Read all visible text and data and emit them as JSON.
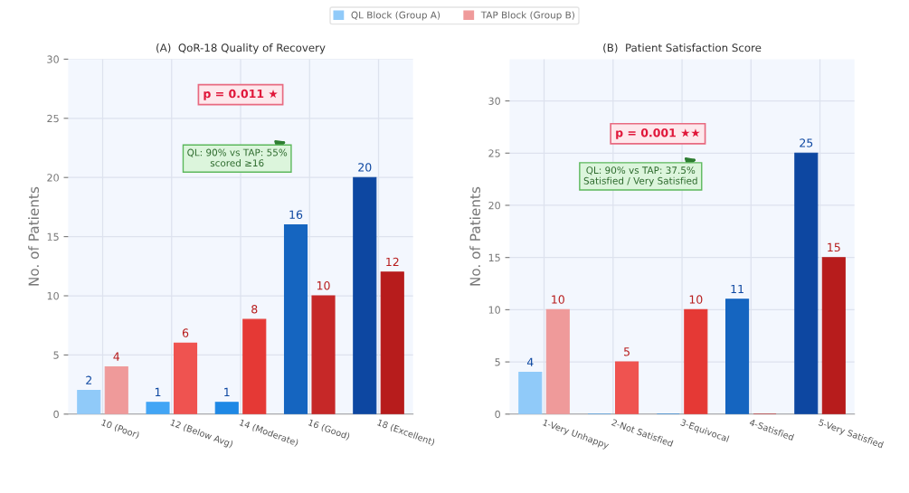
{
  "chart_data": [
    {
      "type": "bar",
      "title": "(A)  QoR-18 Quality of Recovery",
      "ylabel": "No. of Patients",
      "categories": [
        "10 (Poor)",
        "12 (Below Avg)",
        "14 (Moderate)",
        "16 (Good)",
        "18 (Excellent)"
      ],
      "series": [
        {
          "name": "QL Block (Group A)",
          "color": "#90caf9",
          "colors": [
            "#90caf9",
            "#42a5f5",
            "#1e88e5",
            "#1565c0",
            "#0d47a1"
          ],
          "values": [
            2,
            1,
            1,
            16,
            20
          ]
        },
        {
          "name": "TAP Block (Group B)",
          "color": "#ef9a9a",
          "colors": [
            "#ef9a9a",
            "#ef5350",
            "#e53935",
            "#c62828",
            "#b71c1c"
          ],
          "values": [
            4,
            6,
            8,
            10,
            12
          ]
        }
      ],
      "ylim": [
        0,
        30
      ],
      "yticks": [
        0,
        5,
        10,
        15,
        20,
        25,
        30
      ],
      "grid": true,
      "legend": "top",
      "data_labels": true,
      "annotations": [
        "p = 0.011 ★",
        "QL: 90% vs TAP: 55%\nscored ≥16"
      ]
    },
    {
      "type": "bar",
      "title": "(B)  Patient Satisfaction Score",
      "ylabel": "No. of Patients",
      "categories": [
        "1-Very Unhappy",
        "2-Not Satisfied",
        "3-Equivocal",
        "4-Satisfied",
        "5-Very Satisfied"
      ],
      "series": [
        {
          "name": "QL Block (Group A)",
          "color": "#90caf9",
          "colors": [
            "#90caf9",
            "#42a5f5",
            "#1e88e5",
            "#1565c0",
            "#0d47a1"
          ],
          "values": [
            4,
            0,
            0,
            11,
            25
          ],
          "value_labels": [
            "4",
            null,
            null,
            "11",
            "25"
          ]
        },
        {
          "name": "TAP Block (Group B)",
          "color": "#ef9a9a",
          "colors": [
            "#ef9a9a",
            "#ef5350",
            "#e53935",
            "#c62828",
            "#b71c1c"
          ],
          "values": [
            10,
            5,
            10,
            0,
            15
          ],
          "value_labels": [
            "10",
            "5",
            "10",
            null,
            "15"
          ]
        }
      ],
      "ylim": [
        0,
        34
      ],
      "yticks": [
        0,
        5,
        10,
        15,
        20,
        25,
        30
      ],
      "grid": true,
      "legend": "top",
      "annotations": [
        "p = 0.001 ★★",
        "QL: 90% vs TAP: 37.5%\nSatisfied / Very Satisfied"
      ]
    }
  ]
}
